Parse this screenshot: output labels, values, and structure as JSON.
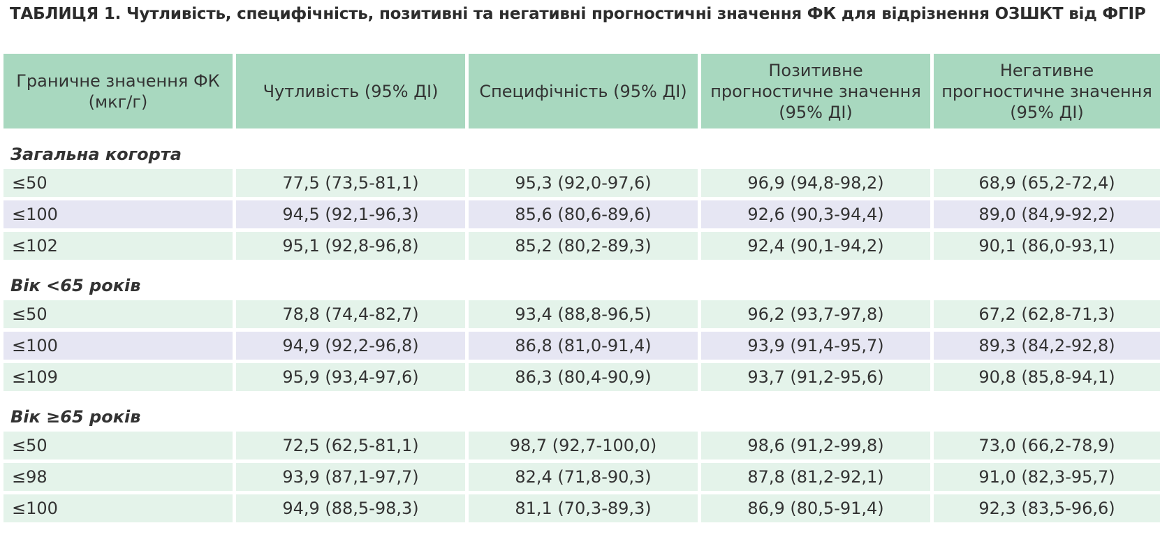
{
  "title": "ТАБЛИЦЯ 1. Чутливість, специфічність, позитивні та негативні прогностичні значення ФК для відрізнення ОЗШКТ від ФГІР",
  "header": {
    "col0": "Граничне значення ФК (мкг/г)",
    "col1": "Чутливість (95% ДІ)",
    "col2": "Специфічність (95% ДІ)",
    "col3": "Позитивне прогностичне значення (95% ДІ)",
    "col4": "Негативне прогностичне значення (95% ДІ)"
  },
  "sections": [
    {
      "label": "Загальна когорта",
      "rows": [
        [
          "≤50",
          "77,5 (73,5-81,1)",
          "95,3 (92,0-97,6)",
          "96,9 (94,8-98,2)",
          "68,9 (65,2-72,4)"
        ],
        [
          "≤100",
          "94,5 (92,1-96,3)",
          "85,6 (80,6-89,6)",
          "92,6 (90,3-94,4)",
          "89,0 (84,9-92,2)"
        ],
        [
          "≤102",
          "95,1 (92,8-96,8)",
          "85,2 (80,2-89,3)",
          "92,4 (90,1-94,2)",
          "90,1 (86,0-93,1)"
        ]
      ]
    },
    {
      "label": "Вік <65 років",
      "rows": [
        [
          "≤50",
          "78,8 (74,4-82,7)",
          "93,4 (88,8-96,5)",
          "96,2 (93,7-97,8)",
          "67,2 (62,8-71,3)"
        ],
        [
          "≤100",
          "94,9 (92,2-96,8)",
          "86,8 (81,0-91,4)",
          "93,9 (91,4-95,7)",
          "89,3 (84,2-92,8)"
        ],
        [
          "≤109",
          "95,9 (93,4-97,6)",
          "86,3 (80,4-90,9)",
          "93,7 (91,2-95,6)",
          "90,8 (85,8-94,1)"
        ]
      ]
    },
    {
      "label": "Вік ≥65 років",
      "rows": [
        [
          "≤50",
          "72,5 (62,5-81,1)",
          "98,7 (92,7-100,0)",
          "98,6 (91,2-99,8)",
          "73,0 (66,2-78,9)"
        ],
        [
          "≤98",
          "93,9 (87,1-97,7)",
          "82,4 (71,8-90,3)",
          "87,8 (81,2-92,1)",
          "91,0 (82,3-95,7)"
        ],
        [
          "≤100",
          "94,9 (88,5-98,3)",
          "81,1 (70,3-89,3)",
          "86,9 (80,5-91,4)",
          "92,3 (83,5-96,6)"
        ]
      ]
    }
  ],
  "colors": {
    "header_bg": "#a8d8bf",
    "row_green": "#e4f3ea",
    "row_lavender": "#e6e6f3"
  }
}
